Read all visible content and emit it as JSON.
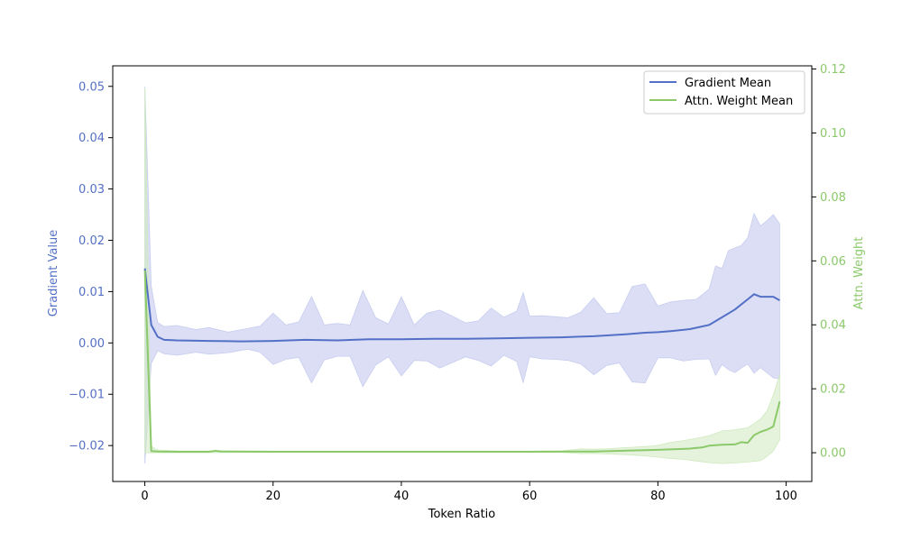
{
  "chart_data": {
    "type": "line",
    "xlabel": "Token Ratio",
    "ylabel_left": "Gradient Value",
    "ylabel_right": "Attn. Weight",
    "xlim": [
      -5,
      104
    ],
    "ylim_left": [
      -0.027,
      0.054
    ],
    "ylim_right": [
      -0.009,
      0.121
    ],
    "xticks": [
      0,
      20,
      40,
      60,
      80,
      100
    ],
    "yticks_left": [
      -0.02,
      -0.01,
      0.0,
      0.01,
      0.02,
      0.03,
      0.04,
      0.05
    ],
    "yticks_right": [
      0.0,
      0.02,
      0.04,
      0.06,
      0.08,
      0.1,
      0.12
    ],
    "xtick_labels": [
      "0",
      "20",
      "40",
      "60",
      "80",
      "100"
    ],
    "ytick_labels_left": [
      "−0.02",
      "−0.01",
      "0.00",
      "0.01",
      "0.02",
      "0.03",
      "0.04",
      "0.05"
    ],
    "ytick_labels_right": [
      "0.00",
      "0.02",
      "0.04",
      "0.06",
      "0.08",
      "0.10",
      "0.12"
    ],
    "grid": false,
    "legend_position": "top-right",
    "colors": {
      "gradient": "#5470c6",
      "gradient_band": "#c7cdef",
      "attention": "#8bc96a",
      "attention_band": "#cfeabf",
      "left_axis_text": "#5470c6",
      "right_axis_text": "#8bc96a"
    },
    "series": [
      {
        "name": "Gradient Mean",
        "axis": "left",
        "x": [
          0,
          1,
          2,
          3,
          5,
          10,
          15,
          20,
          25,
          30,
          35,
          40,
          45,
          50,
          55,
          60,
          65,
          70,
          75,
          78,
          80,
          82,
          85,
          88,
          90,
          92,
          94,
          95,
          96,
          98,
          99
        ],
        "y": [
          0.0145,
          0.0035,
          0.0012,
          0.0006,
          0.0005,
          0.0004,
          0.0003,
          0.0004,
          0.0006,
          0.0005,
          0.0007,
          0.0007,
          0.0008,
          0.0008,
          0.0009,
          0.001,
          0.0011,
          0.0013,
          0.0017,
          0.002,
          0.0021,
          0.0023,
          0.0027,
          0.0035,
          0.005,
          0.0065,
          0.0085,
          0.0095,
          0.009,
          0.009,
          0.0083
        ],
        "band_x": [
          0,
          1,
          2,
          3,
          5,
          8,
          10,
          13,
          16,
          18,
          20,
          22,
          24,
          26,
          28,
          30,
          32,
          34,
          36,
          38,
          40,
          42,
          44,
          46,
          48,
          50,
          52,
          54,
          56,
          58,
          59,
          60,
          62,
          64,
          66,
          68,
          70,
          72,
          74,
          76,
          78,
          80,
          82,
          84,
          86,
          88,
          89,
          90,
          91,
          92,
          93,
          94,
          95,
          96,
          97,
          98,
          99
        ],
        "band_upper": [
          0.05,
          0.011,
          0.004,
          0.0032,
          0.0034,
          0.0026,
          0.003,
          0.0021,
          0.0028,
          0.0033,
          0.0058,
          0.0035,
          0.0041,
          0.009,
          0.0035,
          0.0038,
          0.0035,
          0.0102,
          0.0049,
          0.0037,
          0.009,
          0.0035,
          0.0058,
          0.0064,
          0.0052,
          0.0039,
          0.0043,
          0.0068,
          0.005,
          0.0062,
          0.0098,
          0.0052,
          0.0053,
          0.0051,
          0.0049,
          0.006,
          0.0088,
          0.0057,
          0.0059,
          0.011,
          0.0115,
          0.0072,
          0.008,
          0.0083,
          0.0085,
          0.0105,
          0.015,
          0.0145,
          0.018,
          0.0185,
          0.019,
          0.0205,
          0.0252,
          0.0228,
          0.0238,
          0.025,
          0.0232
        ],
        "band_lower": [
          -0.0235,
          -0.004,
          -0.0015,
          -0.0021,
          -0.0024,
          -0.0018,
          -0.0022,
          -0.0019,
          -0.0012,
          -0.0018,
          -0.0042,
          -0.0032,
          -0.0028,
          -0.0078,
          -0.0033,
          -0.0026,
          -0.0026,
          -0.0085,
          -0.0043,
          -0.0027,
          -0.0064,
          -0.0034,
          -0.0035,
          -0.0049,
          -0.0038,
          -0.0027,
          -0.0034,
          -0.0045,
          -0.0024,
          -0.0036,
          -0.0077,
          -0.0027,
          -0.0031,
          -0.0032,
          -0.0034,
          -0.0041,
          -0.0062,
          -0.0044,
          -0.0039,
          -0.0076,
          -0.0078,
          -0.0029,
          -0.0029,
          -0.0035,
          -0.0032,
          -0.0031,
          -0.0063,
          -0.0042,
          -0.0052,
          -0.0058,
          -0.0049,
          -0.0041,
          -0.0059,
          -0.0048,
          -0.0058,
          -0.0068,
          -0.007
        ]
      },
      {
        "name": "Attn. Weight Mean",
        "axis": "right",
        "x": [
          0,
          1,
          2,
          5,
          10,
          11,
          12,
          20,
          40,
          60,
          70,
          80,
          85,
          87,
          88,
          90,
          92,
          93,
          94,
          95,
          96,
          97,
          98,
          99
        ],
        "y": [
          0.057,
          0.0005,
          0.0004,
          0.0003,
          0.0003,
          0.0006,
          0.0004,
          0.0003,
          0.0003,
          0.0003,
          0.0004,
          0.0009,
          0.0013,
          0.0017,
          0.0022,
          0.0025,
          0.0026,
          0.0033,
          0.0031,
          0.0055,
          0.0065,
          0.0072,
          0.0082,
          0.016
        ],
        "band_x": [
          0,
          1,
          2,
          5,
          20,
          40,
          60,
          65,
          68,
          70,
          72,
          75,
          78,
          80,
          82,
          84,
          86,
          88,
          90,
          92,
          94,
          96,
          97,
          98,
          99
        ],
        "band_upper": [
          0.114,
          0.002,
          0.0008,
          0.0006,
          0.0005,
          0.0005,
          0.0005,
          0.0006,
          0.0012,
          0.0011,
          0.0012,
          0.0016,
          0.0019,
          0.0023,
          0.0032,
          0.0038,
          0.0045,
          0.0053,
          0.0068,
          0.0072,
          0.0078,
          0.0105,
          0.013,
          0.018,
          0.0245
        ],
        "band_lower": [
          0.0,
          0.0,
          0.0,
          0.0,
          0.0001,
          0.0001,
          0.0001,
          0.0001,
          -0.0003,
          -0.0002,
          -0.0004,
          -0.0006,
          -0.001,
          -0.0014,
          -0.0018,
          -0.0021,
          -0.0026,
          -0.0031,
          -0.0034,
          -0.0032,
          -0.0029,
          -0.0025,
          -0.0012,
          0.0005,
          0.004
        ]
      }
    ]
  }
}
